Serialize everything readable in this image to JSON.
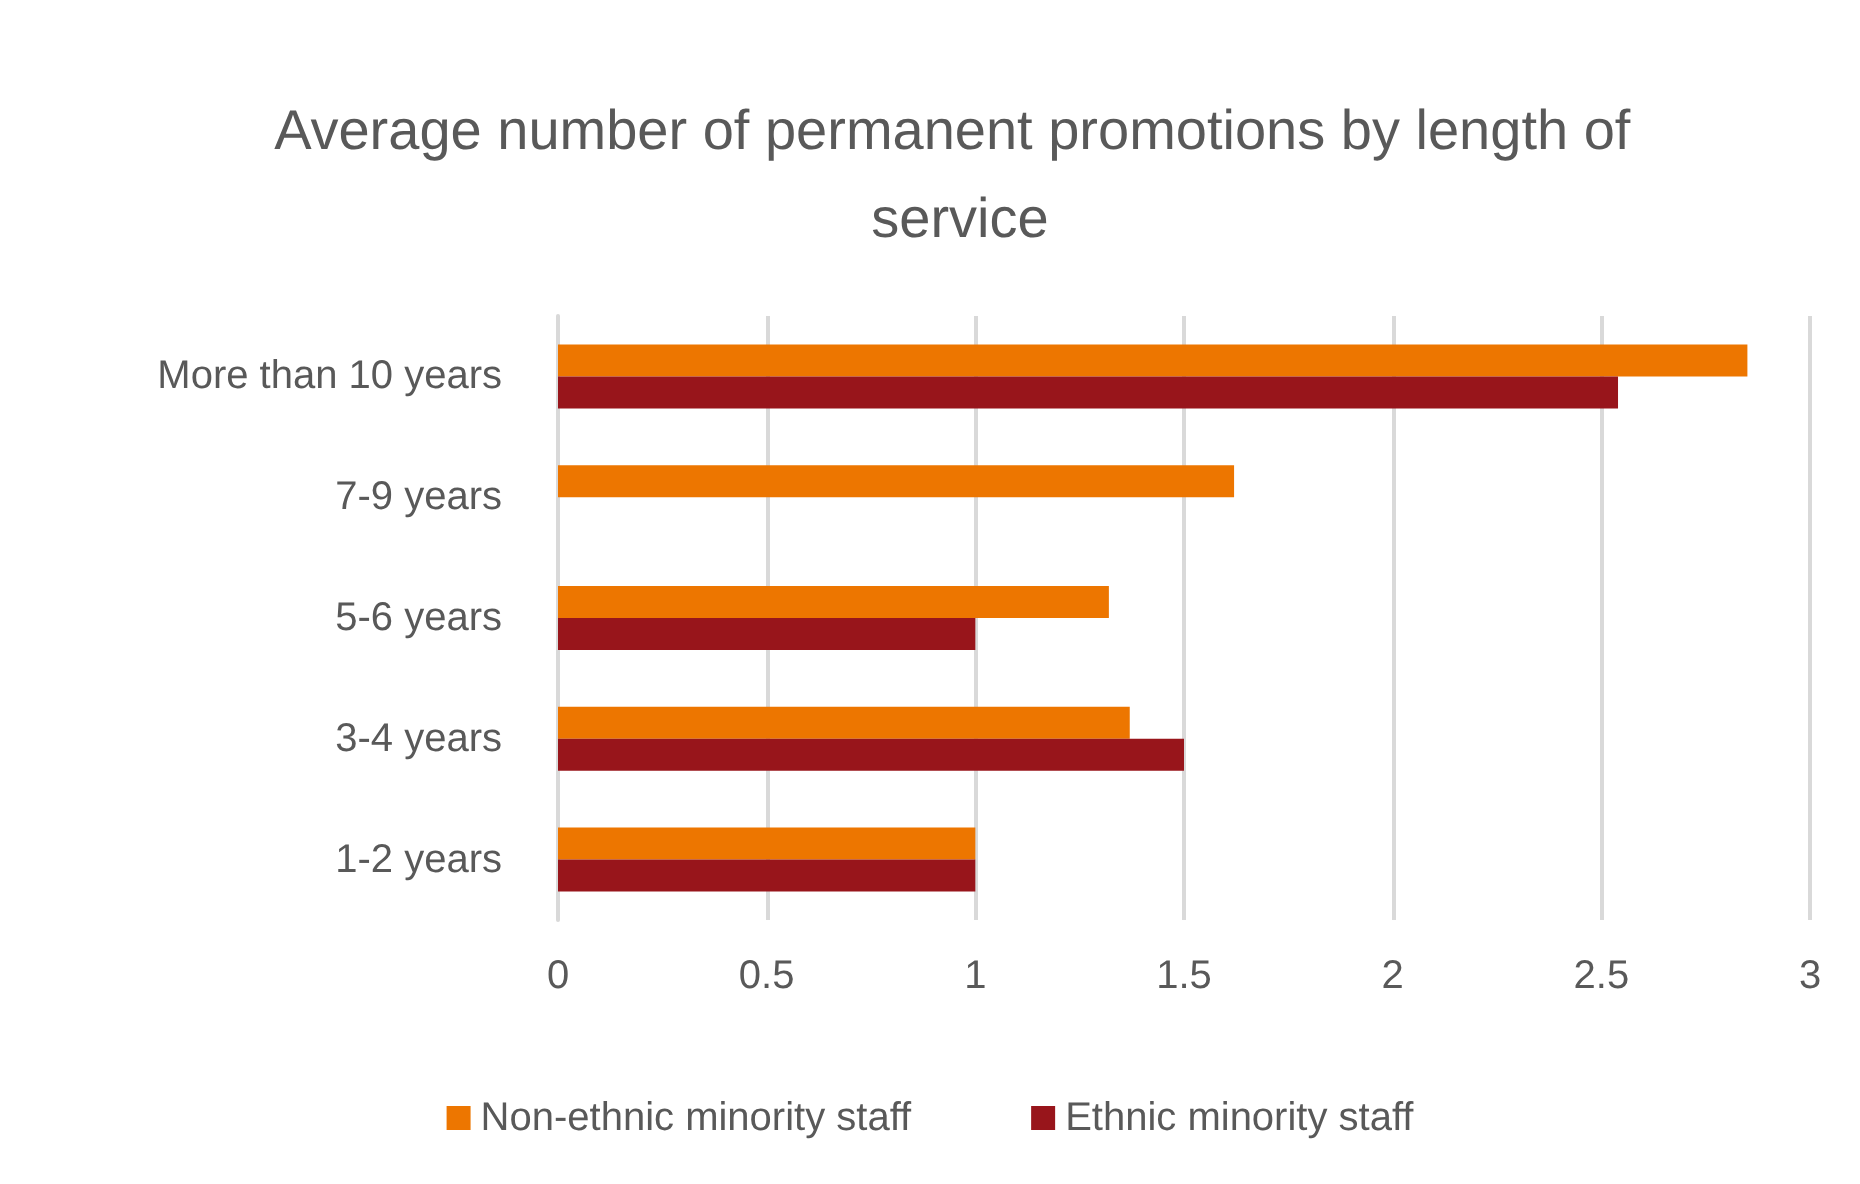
{
  "chart_data": {
    "type": "bar",
    "orientation": "horizontal",
    "title": "Average number of permanent promotions by length of service",
    "categories": [
      "More than 10 years",
      "7-9 years",
      "5-6 years",
      "3-4 years",
      "1-2 years"
    ],
    "series": [
      {
        "name": "Non-ethnic minority staff",
        "color": "#ed7600",
        "values": [
          2.85,
          1.62,
          1.32,
          1.37,
          1
        ]
      },
      {
        "name": "Ethnic minority staff",
        "color": "#98151b",
        "values": [
          2.54,
          null,
          1,
          1.5,
          1
        ]
      }
    ],
    "xlim": [
      0,
      3
    ],
    "xticks": [
      0,
      0.5,
      1,
      1.5,
      2,
      2.5,
      3
    ],
    "grid": "x",
    "legend": "bottom"
  }
}
